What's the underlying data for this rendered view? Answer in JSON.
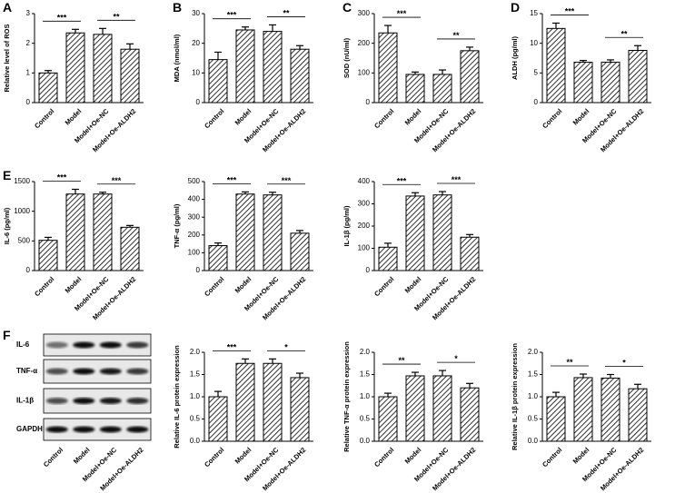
{
  "chart_data": [
    {
      "type": "bar",
      "panel_label": "A",
      "ylabel": "Relative level of ROS",
      "categories": [
        "Control",
        "Model",
        "Model+Oe-NC",
        "Model+Oe-ALDH2"
      ],
      "values": [
        1.0,
        2.35,
        2.3,
        1.8
      ],
      "errors": [
        0.08,
        0.12,
        0.2,
        0.18
      ],
      "ylim": [
        0,
        3
      ],
      "yticks": [
        0,
        1,
        2,
        3
      ],
      "significance": [
        {
          "pair": [
            "Control",
            "Model"
          ],
          "label": "***"
        },
        {
          "pair": [
            "Model+Oe-NC",
            "Model+Oe-ALDH2"
          ],
          "label": "**"
        }
      ]
    },
    {
      "type": "bar",
      "panel_label": "B",
      "ylabel": "MDA (nmol/ml)",
      "categories": [
        "Control",
        "Model",
        "Model+Oe-NC",
        "Model+Oe-ALDH2"
      ],
      "values": [
        14.5,
        24.5,
        24,
        18
      ],
      "errors": [
        2.5,
        1,
        2.2,
        1.2
      ],
      "ylim": [
        0,
        30
      ],
      "yticks": [
        0,
        10,
        20,
        30
      ],
      "significance": [
        {
          "pair": [
            "Control",
            "Model"
          ],
          "label": "***"
        },
        {
          "pair": [
            "Model+Oe-NC",
            "Model+Oe-ALDH2"
          ],
          "label": "**"
        }
      ]
    },
    {
      "type": "bar",
      "panel_label": "C",
      "ylabel": "SOD (nU/ml)",
      "categories": [
        "Control",
        "Model",
        "Model+Oe-NC",
        "Model+Oe-ALDH2"
      ],
      "values": [
        235,
        95,
        95,
        175
      ],
      "errors": [
        25,
        8,
        15,
        12
      ],
      "ylim": [
        0,
        300
      ],
      "yticks": [
        0,
        100,
        200,
        300
      ],
      "significance": [
        {
          "pair": [
            "Control",
            "Model"
          ],
          "label": "***"
        },
        {
          "pair": [
            "Model+Oe-NC",
            "Model+Oe-ALDH2"
          ],
          "label": "**"
        }
      ]
    },
    {
      "type": "bar",
      "panel_label": "D",
      "ylabel": "ALDH (pg/ml)",
      "categories": [
        "Control",
        "Model",
        "Model+Oe-NC",
        "Model+Oe-ALDH2"
      ],
      "values": [
        12.5,
        6.8,
        6.8,
        8.8
      ],
      "errors": [
        0.9,
        0.3,
        0.4,
        0.8
      ],
      "ylim": [
        0,
        15
      ],
      "yticks": [
        0,
        5,
        10,
        15
      ],
      "significance": [
        {
          "pair": [
            "Control",
            "Model"
          ],
          "label": "***"
        },
        {
          "pair": [
            "Model+Oe-NC",
            "Model+Oe-ALDH2"
          ],
          "label": "**"
        }
      ]
    },
    {
      "type": "bar",
      "panel_label": "E",
      "ylabel": "IL-6 (pg/ml)",
      "categories": [
        "Control",
        "Model",
        "Model+Oe-NC",
        "Model+Oe-ALDH2"
      ],
      "values": [
        510,
        1290,
        1290,
        730
      ],
      "errors": [
        50,
        80,
        30,
        30
      ],
      "ylim": [
        0,
        1500
      ],
      "yticks": [
        0,
        500,
        1000,
        1500
      ],
      "significance": [
        {
          "pair": [
            "Control",
            "Model"
          ],
          "label": "***"
        },
        {
          "pair": [
            "Model+Oe-NC",
            "Model+Oe-ALDH2"
          ],
          "label": "***"
        }
      ]
    },
    {
      "type": "bar",
      "ylabel": "TNF-α (pg/ml)",
      "categories": [
        "Control",
        "Model",
        "Model+Oe-NC",
        "Model+Oe-ALDH2"
      ],
      "values": [
        140,
        430,
        425,
        210
      ],
      "errors": [
        15,
        12,
        15,
        15
      ],
      "ylim": [
        0,
        500
      ],
      "yticks": [
        0,
        100,
        200,
        300,
        400,
        500
      ],
      "significance": [
        {
          "pair": [
            "Control",
            "Model"
          ],
          "label": "***"
        },
        {
          "pair": [
            "Model+Oe-NC",
            "Model+Oe-ALDH2"
          ],
          "label": "***"
        }
      ]
    },
    {
      "type": "bar",
      "ylabel": "IL-1β (pg/ml)",
      "categories": [
        "Control",
        "Model",
        "Model+Oe-NC",
        "Model+Oe-ALDH2"
      ],
      "values": [
        105,
        335,
        340,
        150
      ],
      "errors": [
        18,
        15,
        15,
        12
      ],
      "ylim": [
        0,
        400
      ],
      "yticks": [
        0,
        100,
        200,
        300,
        400
      ],
      "significance": [
        {
          "pair": [
            "Control",
            "Model"
          ],
          "label": "***"
        },
        {
          "pair": [
            "Model+Oe-NC",
            "Model+Oe-ALDH2"
          ],
          "label": "***"
        }
      ]
    },
    {
      "type": "bar",
      "ylabel": "Relative IL-6 protein expression",
      "categories": [
        "Control",
        "Model",
        "Model+Oe-NC",
        "Model+Oe-ALDH2"
      ],
      "values": [
        1.0,
        1.75,
        1.75,
        1.43
      ],
      "errors": [
        0.12,
        0.1,
        0.1,
        0.1
      ],
      "ylim": [
        0,
        2
      ],
      "yticks": [
        {
          "value": 0,
          "label": "0.0"
        },
        0.5,
        {
          "value": 1,
          "label": "1.0"
        },
        1.5,
        {
          "value": 2,
          "label": "2.0"
        }
      ],
      "significance": [
        {
          "pair": [
            "Control",
            "Model"
          ],
          "label": "***"
        },
        {
          "pair": [
            "Model+Oe-NC",
            "Model+Oe-ALDH2"
          ],
          "label": "*"
        }
      ]
    },
    {
      "type": "bar",
      "ylabel": "Relative TNF-α protein expression",
      "categories": [
        "Control",
        "Model",
        "Model+Oe-NC",
        "Model+Oe-ALDH2"
      ],
      "values": [
        1.0,
        1.47,
        1.47,
        1.2
      ],
      "errors": [
        0.08,
        0.08,
        0.12,
        0.1
      ],
      "ylim": [
        0,
        2
      ],
      "yticks": [
        {
          "value": 0,
          "label": "0.0"
        },
        0.5,
        {
          "value": 1,
          "label": "1.0"
        },
        1.5,
        {
          "value": 2,
          "label": "2.0"
        }
      ],
      "significance": [
        {
          "pair": [
            "Control",
            "Model"
          ],
          "label": "**"
        },
        {
          "pair": [
            "Model+Oe-NC",
            "Model+Oe-ALDH2"
          ],
          "label": "*"
        }
      ]
    },
    {
      "type": "bar",
      "ylabel": "Relative IL-1β protein expression",
      "categories": [
        "Control",
        "Model",
        "Model+Oe-NC",
        "Model+Oe-ALDH2"
      ],
      "values": [
        1.0,
        1.43,
        1.42,
        1.18
      ],
      "errors": [
        0.1,
        0.08,
        0.08,
        0.1
      ],
      "ylim": [
        0,
        2
      ],
      "yticks": [
        {
          "value": 0,
          "label": "0.0"
        },
        0.5,
        {
          "value": 1,
          "label": "1.0"
        },
        1.5,
        {
          "value": 2,
          "label": "2.0"
        }
      ],
      "significance": [
        {
          "pair": [
            "Control",
            "Model"
          ],
          "label": "**"
        },
        {
          "pair": [
            "Model+Oe-NC",
            "Model+Oe-ALDH2"
          ],
          "label": "*"
        }
      ]
    }
  ],
  "western_blot": {
    "panel_label": "F",
    "rows": [
      "IL-6",
      "TNF-α",
      "IL-1β",
      "GAPDH"
    ],
    "categories": [
      "Control",
      "Model",
      "Model+Oe-NC",
      "Model+Oe-ALDH2"
    ]
  }
}
